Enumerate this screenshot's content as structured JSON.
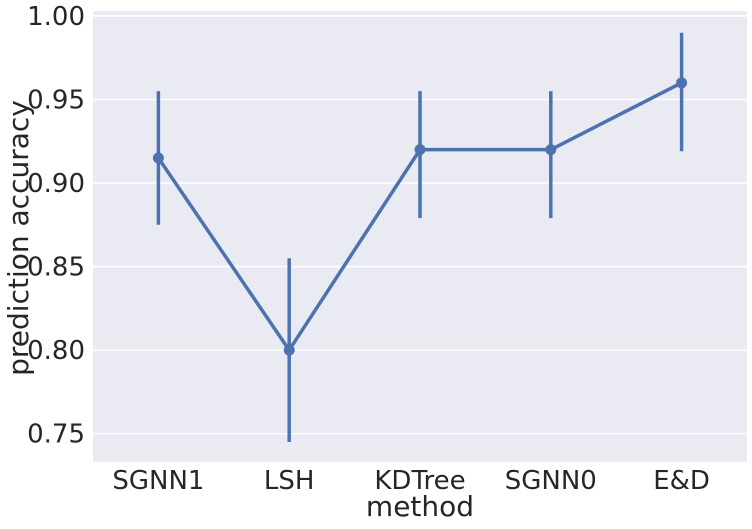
{
  "chart_data": {
    "type": "line",
    "style": "point plot with error bars",
    "categories": [
      "SGNN1",
      "LSH",
      "KDTree",
      "SGNN0",
      "E&D"
    ],
    "values": [
      0.915,
      0.8,
      0.92,
      0.92,
      0.96
    ],
    "error_low": [
      0.875,
      0.745,
      0.879,
      0.879,
      0.919
    ],
    "error_high": [
      0.955,
      0.855,
      0.955,
      0.955,
      0.99
    ],
    "xlabel": "method",
    "ylabel": "prediction accuracy",
    "ylim": [
      0.733,
      1.003
    ],
    "yticks": [
      0.75,
      0.8,
      0.85,
      0.9,
      0.95,
      1.0
    ],
    "ytick_labels": [
      "0.75",
      "0.80",
      "0.85",
      "0.90",
      "0.95",
      "1.00"
    ],
    "grid": true,
    "background_color": "#eaeaf2",
    "line_color": "#4c72b0"
  }
}
